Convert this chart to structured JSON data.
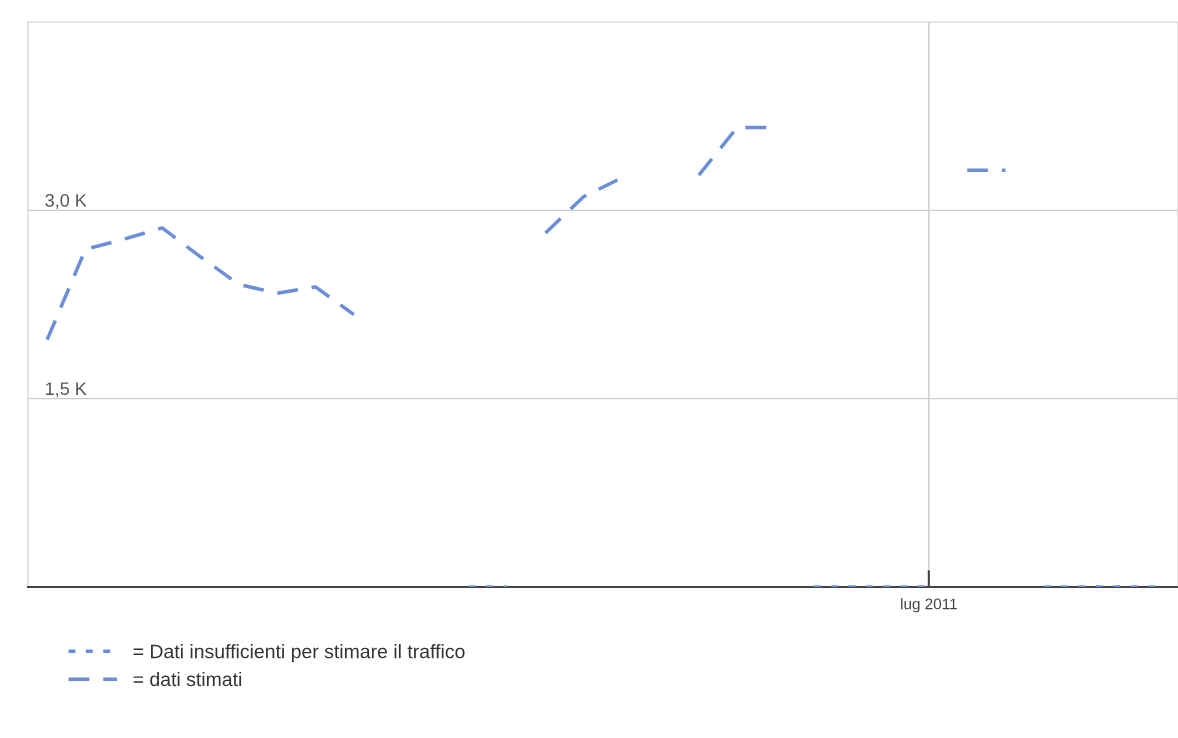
{
  "chart_data": {
    "type": "line",
    "categories": [
      null,
      null,
      null,
      null,
      null,
      null,
      null,
      null,
      null,
      null,
      null,
      null,
      null,
      null,
      null,
      null,
      null,
      null,
      null,
      null,
      null,
      null,
      null,
      "lug 2011",
      null,
      null,
      null,
      null,
      null,
      null
    ],
    "ylim": [
      0,
      4.5
    ],
    "yticks": [
      {
        "value": 1.5,
        "label": "1,5 K"
      },
      {
        "value": 3.0,
        "label": "3,0 K"
      }
    ],
    "grid": true,
    "legend": "bottom left",
    "series": [
      {
        "name": "= Dati insufficienti per stimare il traffico",
        "color": "#6a8fd8",
        "line_style": "dotted",
        "values": [
          null,
          null,
          null,
          null,
          null,
          null,
          null,
          null,
          null,
          null,
          null,
          0,
          0,
          null,
          null,
          null,
          null,
          null,
          null,
          null,
          0,
          0,
          0,
          0,
          null,
          null,
          0,
          0,
          0,
          0
        ]
      },
      {
        "name": "= dati stimati",
        "color": "#6a8fd8",
        "line_style": "dashed",
        "values": [
          1.97,
          2.69,
          2.77,
          2.86,
          2.63,
          2.41,
          2.34,
          2.39,
          2.17,
          null,
          null,
          null,
          null,
          2.82,
          3.11,
          3.26,
          null,
          3.28,
          3.66,
          3.66,
          null,
          null,
          null,
          null,
          3.32,
          3.32,
          null,
          null,
          null,
          null
        ]
      }
    ]
  }
}
